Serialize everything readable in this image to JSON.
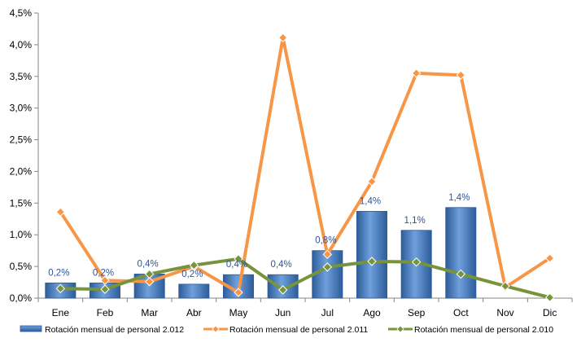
{
  "chart_data": {
    "type": "bar",
    "categories": [
      "Ene",
      "Feb",
      "Mar",
      "Abr",
      "May",
      "Jun",
      "Jul",
      "Ago",
      "Sep",
      "Oct",
      "Nov",
      "Dic"
    ],
    "ylim": [
      0,
      4.5
    ],
    "y_ticks": [
      "0,0%",
      "0,5%",
      "1,0%",
      "1,5%",
      "2,0%",
      "2,5%",
      "3,0%",
      "3,5%",
      "4,0%",
      "4,5%"
    ],
    "grid": false,
    "legend_position": "bottom",
    "series": [
      {
        "name": "Rotación mensual de personal 2.012",
        "kind": "bar",
        "color": "#4A7EBB",
        "values": [
          0.24,
          0.24,
          0.38,
          0.22,
          0.37,
          0.37,
          0.75,
          1.37,
          1.07,
          1.43,
          null,
          null
        ],
        "data_labels": [
          "0,2%",
          "0,2%",
          "0,4%",
          "0,2%",
          "0,4%",
          "0,4%",
          "0,8%",
          "1,4%",
          "1,1%",
          "1,4%",
          "",
          ""
        ]
      },
      {
        "name": "Rotación mensual de personal 2.011",
        "kind": "line",
        "color": "#F79646",
        "values": [
          1.36,
          0.28,
          0.26,
          0.5,
          0.09,
          4.11,
          0.69,
          1.84,
          3.55,
          3.52,
          0.17,
          0.63
        ]
      },
      {
        "name": "Rotación mensual de personal 2.010",
        "kind": "line",
        "color": "#77933C",
        "values": [
          0.15,
          0.14,
          0.38,
          0.52,
          0.62,
          0.13,
          0.49,
          0.58,
          0.57,
          0.38,
          0.19,
          0.01
        ]
      }
    ]
  }
}
